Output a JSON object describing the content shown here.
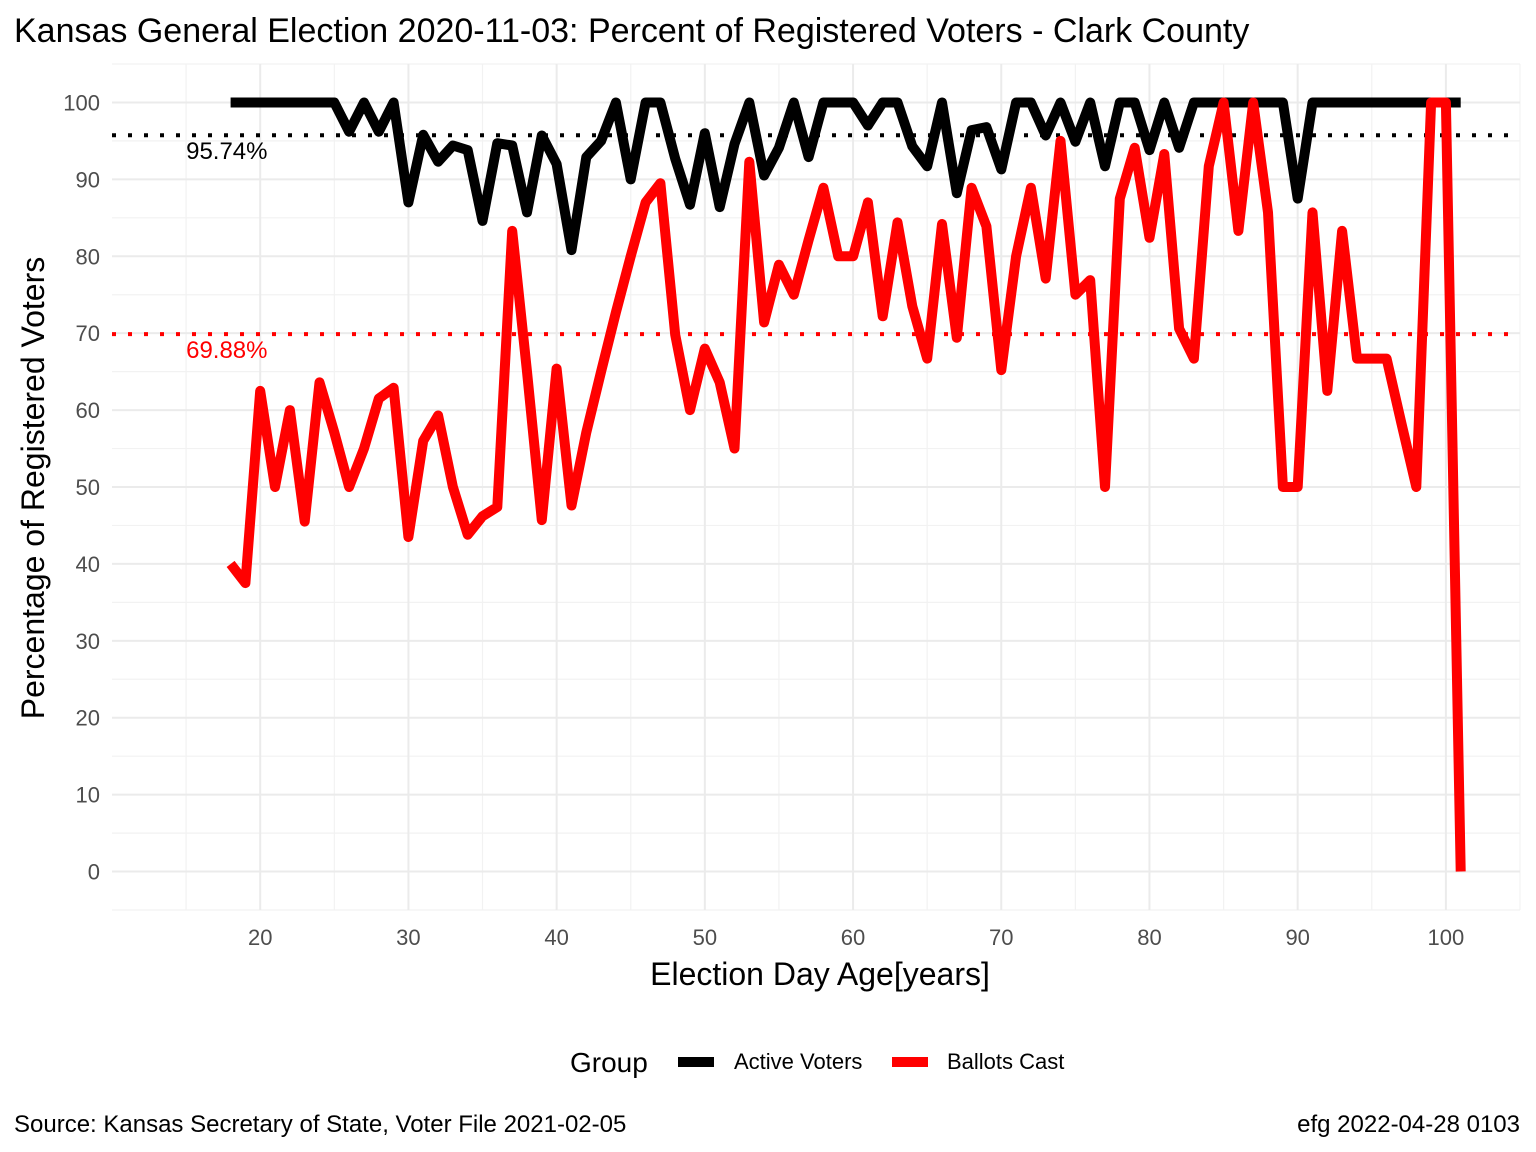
{
  "chart_data": {
    "type": "line",
    "title": "Kansas General Election 2020-11-03:  Percent of Registered Voters - Clark County",
    "xlabel": "Election Day Age[years]",
    "ylabel": "Percentage of Registered Voters",
    "xlim": [
      10,
      105
    ],
    "ylim": [
      -5,
      105
    ],
    "x_ticks": [
      20,
      30,
      40,
      50,
      60,
      70,
      80,
      90,
      100
    ],
    "y_ticks": [
      0,
      10,
      20,
      30,
      40,
      50,
      60,
      70,
      80,
      90,
      100
    ],
    "grid": true,
    "legend": {
      "title": "Group",
      "position": "bottom"
    },
    "series": [
      {
        "name": "Active Voters",
        "color": "#000000",
        "x": [
          18,
          19,
          20,
          21,
          22,
          23,
          24,
          25,
          26,
          27,
          28,
          29,
          30,
          31,
          32,
          33,
          34,
          35,
          36,
          37,
          38,
          39,
          40,
          41,
          42,
          43,
          44,
          45,
          46,
          47,
          48,
          49,
          50,
          51,
          52,
          53,
          54,
          55,
          56,
          57,
          58,
          59,
          60,
          61,
          62,
          63,
          64,
          65,
          66,
          67,
          68,
          69,
          70,
          71,
          72,
          73,
          74,
          75,
          76,
          77,
          78,
          79,
          80,
          81,
          82,
          83,
          84,
          85,
          86,
          87,
          88,
          89,
          90,
          91,
          92,
          93,
          94,
          95,
          96,
          97,
          98,
          99,
          100,
          101
        ],
        "y": [
          100,
          100,
          100,
          100,
          100,
          100,
          100,
          100,
          96.2,
          100,
          96.2,
          100,
          87,
          95.8,
          92.3,
          94.4,
          93.8,
          84.6,
          94.7,
          94.4,
          85.7,
          95.7,
          92,
          80.8,
          92.9,
          95,
          100,
          90,
          100,
          100,
          92.7,
          86.7,
          96,
          86.4,
          94.6,
          100,
          90.5,
          94.1,
          100,
          92.9,
          100,
          100,
          100,
          97,
          100,
          100,
          94.3,
          91.7,
          100,
          88.2,
          96.4,
          96.8,
          91.3,
          100,
          100,
          95.7,
          100,
          94.9,
          100,
          91.7,
          100,
          100,
          93.8,
          100,
          94.1,
          100,
          100,
          100,
          100,
          100,
          100,
          100,
          87.5,
          100,
          100,
          100,
          100,
          100,
          100,
          100,
          100,
          100,
          100,
          100
        ]
      },
      {
        "name": "Ballots Cast",
        "color": "#ff0000",
        "x": [
          18,
          19,
          20,
          21,
          22,
          23,
          24,
          25,
          26,
          27,
          28,
          29,
          30,
          31,
          32,
          33,
          34,
          35,
          36,
          37,
          38,
          39,
          40,
          41,
          42,
          43,
          44,
          45,
          46,
          47,
          48,
          49,
          50,
          51,
          52,
          53,
          54,
          55,
          56,
          57,
          58,
          59,
          60,
          61,
          62,
          63,
          64,
          65,
          66,
          67,
          68,
          69,
          70,
          71,
          72,
          73,
          74,
          75,
          76,
          77,
          78,
          79,
          80,
          81,
          82,
          83,
          84,
          85,
          86,
          87,
          88,
          89,
          90,
          91,
          92,
          93,
          94,
          95,
          96,
          97,
          98,
          99,
          100,
          101
        ],
        "y": [
          40,
          37.5,
          62.5,
          50,
          60,
          45.5,
          63.6,
          57.1,
          50,
          55,
          61.5,
          62.9,
          43.5,
          56,
          59.3,
          50,
          43.8,
          46.2,
          47.4,
          83.3,
          65,
          45.7,
          65.4,
          47.6,
          57.1,
          65,
          72.7,
          80,
          87,
          89.5,
          69.8,
          60,
          68,
          63.6,
          55,
          92.3,
          71.4,
          78.9,
          75,
          82.1,
          88.9,
          80,
          80,
          87,
          72.2,
          84.4,
          73.5,
          66.7,
          84.2,
          69.4,
          88.9,
          83.9,
          65.2,
          80,
          88.9,
          77.1,
          95,
          75,
          76.9,
          50,
          87.5,
          94.1,
          82.4,
          93.3,
          70.6,
          66.7,
          91.7,
          100,
          83.3,
          100,
          85.7,
          50,
          50,
          85.7,
          62.5,
          83.3,
          66.7,
          66.7,
          66.7,
          58.3,
          50,
          100,
          100,
          0
        ]
      }
    ],
    "reference_lines": [
      {
        "series": "Active Voters",
        "value": 95.74,
        "label": "95.74%",
        "color": "#000000"
      },
      {
        "series": "Ballots Cast",
        "value": 69.88,
        "label": "69.88%",
        "color": "#ff0000"
      }
    ],
    "caption_left": "Source:  Kansas Secretary of State, Voter File  2021-02-05",
    "caption_right": "efg 2022-04-28 0103"
  }
}
